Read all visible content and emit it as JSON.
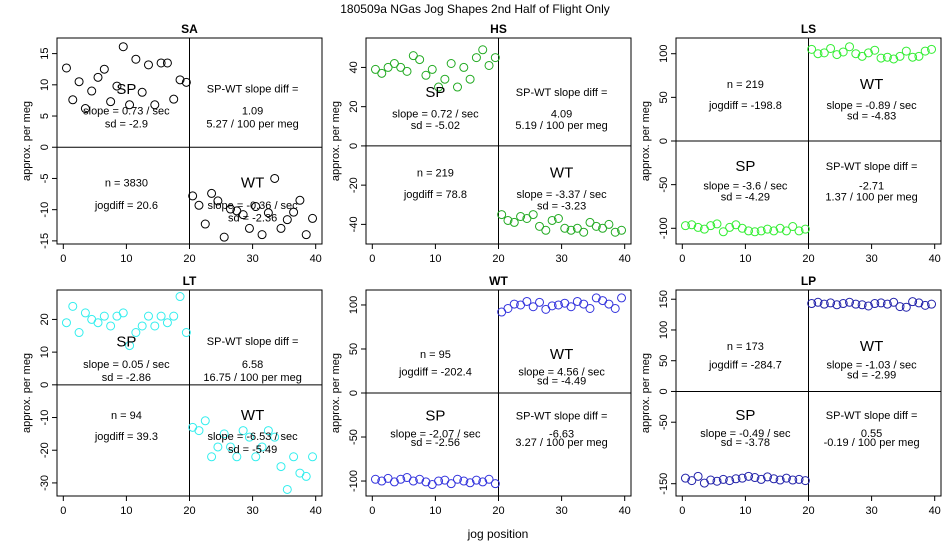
{
  "figure": {
    "title": "180509a   NGas Jog Shapes 2nd Half of Flight Only",
    "xlabel": "jog position",
    "ylabel": "approx. per meg"
  },
  "colors": {
    "SA": "#000000",
    "HS": "#22aa22",
    "LS": "#33ee33",
    "LT": "#33eeee",
    "WT": "#3333dd",
    "LP": "#2222aa"
  },
  "chart_data": [
    {
      "type": "scatter",
      "title": "SA",
      "color_key": "SA",
      "xlim": [
        -1,
        41
      ],
      "ylim": [
        -15.5,
        17.5
      ],
      "xticks": [
        "0",
        "10",
        "20",
        "30",
        "40"
      ],
      "yticks": [
        "-15",
        "-10",
        "-5",
        "0",
        "5",
        "10",
        "15"
      ],
      "x": [
        0.5,
        1.5,
        2.5,
        3.5,
        4.5,
        5.5,
        6.5,
        7.5,
        8.5,
        9.5,
        10.5,
        11.5,
        12.5,
        13.5,
        14.5,
        15.5,
        16.5,
        17.5,
        18.5,
        19.5,
        20.5,
        21.5,
        22.5,
        23.5,
        24.5,
        25.5,
        26.5,
        27.5,
        28.5,
        29.5,
        30.5,
        31.5,
        32.5,
        33.5,
        34.5,
        35.5,
        36.5,
        37.5,
        38.5,
        39.5
      ],
      "y": [
        12.7,
        7.6,
        10.5,
        6.2,
        9.0,
        11.2,
        12.5,
        7.3,
        9.8,
        16.1,
        6.8,
        14.1,
        8.8,
        13.2,
        6.8,
        13.5,
        13.5,
        7.7,
        10.8,
        10.4,
        -7.8,
        -9.3,
        -12.3,
        -7.4,
        -8.6,
        -14.4,
        -9.9,
        -10.2,
        -10.8,
        -13.0,
        -9.5,
        -14.0,
        -10.5,
        -5.0,
        -13.0,
        -11.6,
        -10.4,
        -8.5,
        -14.0,
        -11.4
      ],
      "zero_line": 0,
      "labels": [
        {
          "text": "SP",
          "x": 10,
          "y": 9.2,
          "big": true
        },
        {
          "text": "slope = 0.73 / sec",
          "x": 10,
          "y": 5.7
        },
        {
          "text": "sd = -2.9",
          "x": 10,
          "y": 3.6
        },
        {
          "text": "SP-WT slope diff =",
          "x": 30,
          "y": 9.2
        },
        {
          "text": "1.09",
          "x": 30,
          "y": 5.7
        },
        {
          "text": "5.27 / 100 per meg",
          "x": 30,
          "y": 3.6
        },
        {
          "text": "n = 3830",
          "x": 10,
          "y": -5.8
        },
        {
          "text": "jogdiff = 20.6",
          "x": 10,
          "y": -9.4
        },
        {
          "text": "WT",
          "x": 30,
          "y": -5.8,
          "big": true
        },
        {
          "text": "slope = -0.36 / sec",
          "x": 30,
          "y": -9.4
        },
        {
          "text": "sd = -2.36",
          "x": 30,
          "y": -11.4
        }
      ]
    },
    {
      "type": "scatter",
      "title": "HS",
      "color_key": "HS",
      "xlim": [
        -1,
        41
      ],
      "ylim": [
        -50,
        55
      ],
      "xticks": [
        "0",
        "10",
        "20",
        "30",
        "40"
      ],
      "yticks": [
        "-40",
        "-20",
        "0",
        "20",
        "40"
      ],
      "x": [
        0.5,
        1.5,
        2.5,
        3.5,
        4.5,
        5.5,
        6.5,
        7.5,
        8.5,
        9.5,
        10.5,
        11.5,
        12.5,
        13.5,
        14.5,
        15.5,
        16.5,
        17.5,
        18.5,
        19.5,
        20.5,
        21.5,
        22.5,
        23.5,
        24.5,
        25.5,
        26.5,
        27.5,
        28.5,
        29.5,
        30.5,
        31.5,
        32.5,
        33.5,
        34.5,
        35.5,
        36.5,
        37.5,
        38.5,
        39.5
      ],
      "y": [
        39,
        37,
        40,
        42,
        40,
        38,
        46,
        44,
        36,
        39,
        30,
        34,
        42,
        30,
        40,
        34,
        45,
        49,
        41,
        45,
        -35,
        -38,
        -39,
        -36,
        -37,
        -35,
        -41,
        -43,
        -38,
        -37,
        -42,
        -43,
        -42,
        -44,
        -39,
        -41,
        -42,
        -40,
        -44,
        -43
      ],
      "zero_line": 0,
      "labels": [
        {
          "text": "SP",
          "x": 10,
          "y": 27,
          "big": true
        },
        {
          "text": "slope = 0.72 / sec",
          "x": 10,
          "y": 16
        },
        {
          "text": "sd = -5.02",
          "x": 10,
          "y": 10
        },
        {
          "text": "SP-WT slope diff =",
          "x": 30,
          "y": 27
        },
        {
          "text": "4.09",
          "x": 30,
          "y": 16
        },
        {
          "text": "5.19 / 100 per meg",
          "x": 30,
          "y": 10
        },
        {
          "text": "n = 219",
          "x": 10,
          "y": -14
        },
        {
          "text": "jogdiff = 78.8",
          "x": 10,
          "y": -25
        },
        {
          "text": "WT",
          "x": 30,
          "y": -14,
          "big": true
        },
        {
          "text": "slope = -3.37 / sec",
          "x": 30,
          "y": -25
        },
        {
          "text": "sd = -3.23",
          "x": 30,
          "y": -31
        }
      ]
    },
    {
      "type": "scatter",
      "title": "LS",
      "color_key": "LS",
      "xlim": [
        -1,
        41
      ],
      "ylim": [
        -118,
        118
      ],
      "xticks": [
        "0",
        "10",
        "20",
        "30",
        "40"
      ],
      "yticks": [
        "-100",
        "-50",
        "0",
        "50",
        "100"
      ],
      "x": [
        0.5,
        1.5,
        2.5,
        3.5,
        4.5,
        5.5,
        6.5,
        7.5,
        8.5,
        9.5,
        10.5,
        11.5,
        12.5,
        13.5,
        14.5,
        15.5,
        16.5,
        17.5,
        18.5,
        19.5,
        20.5,
        21.5,
        22.5,
        23.5,
        24.5,
        25.5,
        26.5,
        27.5,
        28.5,
        29.5,
        30.5,
        31.5,
        32.5,
        33.5,
        34.5,
        35.5,
        36.5,
        37.5,
        38.5,
        39.5
      ],
      "y": [
        -97,
        -96,
        -99,
        -101,
        -97,
        -95,
        -104,
        -99,
        -96,
        -100,
        -103,
        -104,
        -103,
        -101,
        -103,
        -100,
        -103,
        -98,
        -103,
        -101,
        105,
        100,
        101,
        106,
        99,
        102,
        108,
        100,
        97,
        101,
        104,
        95,
        96,
        94,
        97,
        103,
        96,
        97,
        103,
        105
      ],
      "zero_line": 0,
      "labels": [
        {
          "text": "n = 219",
          "x": 10,
          "y": 64
        },
        {
          "text": "jogdiff = -198.8",
          "x": 10,
          "y": 40
        },
        {
          "text": "WT",
          "x": 30,
          "y": 64,
          "big": true
        },
        {
          "text": "slope = -0.89 / sec",
          "x": 30,
          "y": 40
        },
        {
          "text": "sd = -4.83",
          "x": 30,
          "y": 28
        },
        {
          "text": "SP",
          "x": 10,
          "y": -30,
          "big": true
        },
        {
          "text": "slope = -3.6 / sec",
          "x": 10,
          "y": -52
        },
        {
          "text": "sd = -4.29",
          "x": 10,
          "y": -65
        },
        {
          "text": "SP-WT slope diff =",
          "x": 30,
          "y": -30
        },
        {
          "text": "-2.71",
          "x": 30,
          "y": -52
        },
        {
          "text": "1.37 / 100 per meg",
          "x": 30,
          "y": -65
        }
      ]
    },
    {
      "type": "scatter",
      "title": "LT",
      "color_key": "LT",
      "xlim": [
        -1,
        41
      ],
      "ylim": [
        -34,
        29
      ],
      "xticks": [
        "0",
        "10",
        "20",
        "30",
        "40"
      ],
      "yticks": [
        "-30",
        "-20",
        "-10",
        "0",
        "10",
        "20"
      ],
      "x": [
        0.5,
        1.5,
        2.5,
        3.5,
        4.5,
        5.5,
        6.5,
        7.5,
        8.5,
        9.5,
        10.5,
        11.5,
        12.5,
        13.5,
        14.5,
        15.5,
        16.5,
        17.5,
        18.5,
        19.5,
        20.5,
        21.5,
        22.5,
        23.5,
        24.5,
        25.5,
        26.5,
        27.5,
        28.5,
        29.5,
        30.5,
        31.5,
        32.5,
        33.5,
        34.5,
        35.5,
        36.5,
        37.5,
        38.5,
        39.5
      ],
      "y": [
        19,
        24,
        16,
        22,
        20,
        19,
        21,
        18,
        21,
        22,
        12,
        16,
        18,
        21,
        18,
        21,
        19,
        21,
        27,
        16,
        -13,
        -14,
        -11,
        -22,
        -19,
        -15,
        -19,
        -22,
        -14,
        -16,
        -22,
        -19,
        -14,
        -16,
        -25,
        -32,
        -22,
        -27,
        -28,
        -22
      ],
      "zero_line": 0,
      "labels": [
        {
          "text": "SP",
          "x": 10,
          "y": 13,
          "big": true
        },
        {
          "text": "slope = 0.05 / sec",
          "x": 10,
          "y": 6
        },
        {
          "text": "sd = -2.86",
          "x": 10,
          "y": 2
        },
        {
          "text": "SP-WT slope diff =",
          "x": 30,
          "y": 13
        },
        {
          "text": "6.58",
          "x": 30,
          "y": 6
        },
        {
          "text": "16.75 / 100 per meg",
          "x": 30,
          "y": 2
        },
        {
          "text": "n = 94",
          "x": 10,
          "y": -9.6
        },
        {
          "text": "jogdiff = 39.3",
          "x": 10,
          "y": -16
        },
        {
          "text": "WT",
          "x": 30,
          "y": -9.6,
          "big": true
        },
        {
          "text": "slope = -6.53 / sec",
          "x": 30,
          "y": -16
        },
        {
          "text": "sd = -5.49",
          "x": 30,
          "y": -20
        }
      ]
    },
    {
      "type": "scatter",
      "title": "WT",
      "color_key": "WT",
      "xlim": [
        -1,
        41
      ],
      "ylim": [
        -117,
        117
      ],
      "xticks": [
        "0",
        "10",
        "20",
        "30",
        "40"
      ],
      "yticks": [
        "-100",
        "-50",
        "0",
        "50",
        "100"
      ],
      "x": [
        0.5,
        1.5,
        2.5,
        3.5,
        4.5,
        5.5,
        6.5,
        7.5,
        8.5,
        9.5,
        10.5,
        11.5,
        12.5,
        13.5,
        14.5,
        15.5,
        16.5,
        17.5,
        18.5,
        19.5,
        20.5,
        21.5,
        22.5,
        23.5,
        24.5,
        25.5,
        26.5,
        27.5,
        28.5,
        29.5,
        30.5,
        31.5,
        32.5,
        33.5,
        34.5,
        35.5,
        36.5,
        37.5,
        38.5,
        39.5
      ],
      "y": [
        -98,
        -100,
        -97,
        -101,
        -98,
        -96,
        -100,
        -98,
        -101,
        -104,
        -100,
        -99,
        -103,
        -98,
        -100,
        -102,
        -99,
        -101,
        -98,
        -103,
        92,
        96,
        101,
        100,
        104,
        98,
        103,
        95,
        99,
        100,
        102,
        98,
        104,
        101,
        96,
        108,
        105,
        101,
        96,
        108
      ],
      "zero_line": 0,
      "labels": [
        {
          "text": "n = 95",
          "x": 10,
          "y": 43
        },
        {
          "text": "jogdiff = -202.4",
          "x": 10,
          "y": 23
        },
        {
          "text": "WT",
          "x": 30,
          "y": 43,
          "big": true
        },
        {
          "text": "slope = 4.56 / sec",
          "x": 30,
          "y": 23
        },
        {
          "text": "sd = -4.49",
          "x": 30,
          "y": 13
        },
        {
          "text": "SP",
          "x": 10,
          "y": -27,
          "big": true
        },
        {
          "text": "slope = -2.07 / sec",
          "x": 10,
          "y": -47
        },
        {
          "text": "sd = -2.56",
          "x": 10,
          "y": -57
        },
        {
          "text": "SP-WT slope diff =",
          "x": 30,
          "y": -27
        },
        {
          "text": "-6.63",
          "x": 30,
          "y": -47
        },
        {
          "text": "3.27 / 100 per meg",
          "x": 30,
          "y": -57
        }
      ]
    },
    {
      "type": "scatter",
      "title": "LP",
      "color_key": "LP",
      "xlim": [
        -1,
        41
      ],
      "ylim": [
        -170,
        165
      ],
      "xticks": [
        "0",
        "10",
        "20",
        "30",
        "40"
      ],
      "yticks": [
        "-150",
        "-50",
        "0",
        "50",
        "100",
        "150"
      ],
      "x": [
        0.5,
        1.5,
        2.5,
        3.5,
        4.5,
        5.5,
        6.5,
        7.5,
        8.5,
        9.5,
        10.5,
        11.5,
        12.5,
        13.5,
        14.5,
        15.5,
        16.5,
        17.5,
        18.5,
        19.5,
        20.5,
        21.5,
        22.5,
        23.5,
        24.5,
        25.5,
        26.5,
        27.5,
        28.5,
        29.5,
        30.5,
        31.5,
        32.5,
        33.5,
        34.5,
        35.5,
        36.5,
        37.5,
        38.5,
        39.5
      ],
      "y": [
        -141,
        -145,
        -138,
        -149,
        -144,
        -146,
        -143,
        -145,
        -142,
        -141,
        -138,
        -140,
        -143,
        -139,
        -142,
        -144,
        -141,
        -144,
        -143,
        -145,
        143,
        145,
        142,
        144,
        141,
        143,
        145,
        142,
        141,
        139,
        143,
        144,
        142,
        145,
        138,
        137,
        146,
        144,
        140,
        142
      ],
      "zero_line": 0,
      "labels": [
        {
          "text": "n = 173",
          "x": 10,
          "y": 72
        },
        {
          "text": "jogdiff = -284.7",
          "x": 10,
          "y": 42
        },
        {
          "text": "WT",
          "x": 30,
          "y": 72,
          "big": true
        },
        {
          "text": "slope = -1.03 / sec",
          "x": 30,
          "y": 42
        },
        {
          "text": "sd = -2.99",
          "x": 30,
          "y": 26
        },
        {
          "text": "SP",
          "x": 10,
          "y": -40,
          "big": true
        },
        {
          "text": "slope = -0.49 / sec",
          "x": 10,
          "y": -69
        },
        {
          "text": "sd = -3.78",
          "x": 10,
          "y": -84
        },
        {
          "text": "SP-WT slope diff =",
          "x": 30,
          "y": -40
        },
        {
          "text": "0.55",
          "x": 30,
          "y": -69
        },
        {
          "text": "-0.19 / 100 per meg",
          "x": 30,
          "y": -84
        }
      ]
    }
  ]
}
